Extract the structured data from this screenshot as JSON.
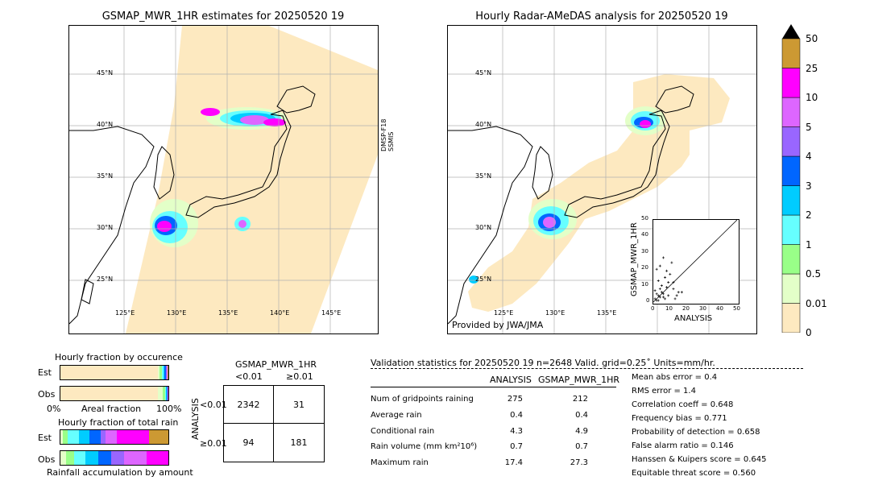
{
  "left_map": {
    "title": "GSMAP_MWR_1HR estimates for 20250520 19",
    "side_label": "DMSP-F18\nSSMIS",
    "lat_labels": [
      "45°N",
      "40°N",
      "35°N",
      "30°N",
      "25°N"
    ],
    "lon_labels": [
      "125°E",
      "130°E",
      "135°E",
      "140°E",
      "145°E"
    ]
  },
  "right_map": {
    "title": "Hourly Radar-AMeDAS analysis for 20250520 19",
    "lat_labels": [
      "45°N",
      "40°N",
      "35°N",
      "30°N",
      "25°N"
    ],
    "lon_labels": [
      "125°E",
      "130°E",
      "135°E"
    ],
    "credit": "Provided by JWA/JMA"
  },
  "colorbar": {
    "ticks": [
      "50",
      "25",
      "10",
      "5",
      "4",
      "3",
      "2",
      "1",
      "0.5",
      "0.01",
      "0"
    ],
    "colors": [
      "#fde9c0",
      "#e3ffc8",
      "#99ff88",
      "#66ffff",
      "#00ccff",
      "#0066ff",
      "#9966ff",
      "#dd66ff",
      "#ff00ff",
      "#cc9933"
    ]
  },
  "scatter": {
    "ylabel": "GSMAP_MWR_1HR",
    "xlabel": "ANALYSIS",
    "ticks": [
      "0",
      "10",
      "20",
      "30",
      "40",
      "50"
    ]
  },
  "chart_data": [
    {
      "type": "scatter",
      "xlabel": "ANALYSIS",
      "ylabel": "GSMAP_MWR_1HR",
      "xlim": [
        0,
        50
      ],
      "ylim": [
        0,
        50
      ],
      "points": [
        [
          1,
          2
        ],
        [
          2,
          1
        ],
        [
          3,
          4
        ],
        [
          4,
          3
        ],
        [
          5,
          6
        ],
        [
          6,
          5
        ],
        [
          7,
          2
        ],
        [
          8,
          9
        ],
        [
          9,
          12
        ],
        [
          10,
          17
        ],
        [
          11,
          24
        ],
        [
          12,
          8
        ],
        [
          13,
          2
        ],
        [
          15,
          6
        ],
        [
          2,
          20
        ],
        [
          4,
          22
        ],
        [
          6,
          27
        ],
        [
          8,
          19
        ],
        [
          3,
          13
        ],
        [
          5,
          10
        ],
        [
          7,
          15
        ],
        [
          9,
          4
        ],
        [
          1,
          7
        ],
        [
          2,
          5
        ],
        [
          12,
          12
        ],
        [
          14,
          4
        ],
        [
          17,
          6
        ],
        [
          6,
          3
        ],
        [
          3,
          1
        ],
        [
          4,
          8
        ]
      ]
    },
    {
      "type": "bar",
      "title": "Hourly fraction by occurence",
      "categories": [
        "Est",
        "Obs"
      ],
      "xlabel": "Areal fraction",
      "tick_labels": [
        "0%",
        "100%"
      ],
      "series_colors": [
        "#fde9c0",
        "#e3ffc8",
        "#99ff88",
        "#66ffff",
        "#00ccff",
        "#0066ff",
        "#9966ff",
        "#dd66ff",
        "#ff00ff",
        "#cc9933"
      ],
      "stacks": [
        [
          0.9,
          0.02,
          0.02,
          0.015,
          0.01,
          0.01,
          0.01,
          0.005,
          0.005,
          0.005
        ],
        [
          0.9,
          0.05,
          0.02,
          0.01,
          0.005,
          0.005,
          0.005,
          0.003,
          0.001,
          0.001
        ]
      ]
    },
    {
      "type": "bar",
      "title": "Hourly fraction of total rain",
      "categories": [
        "Est",
        "Obs"
      ],
      "xlabel": "Rainfall accumulation by amount",
      "series_colors": [
        "#fde9c0",
        "#e3ffc8",
        "#99ff88",
        "#66ffff",
        "#00ccff",
        "#0066ff",
        "#9966ff",
        "#dd66ff",
        "#ff00ff",
        "#cc9933"
      ],
      "stacks": [
        [
          0.0,
          0.02,
          0.05,
          0.1,
          0.1,
          0.1,
          0.05,
          0.1,
          0.3,
          0.18
        ],
        [
          0.0,
          0.05,
          0.08,
          0.1,
          0.12,
          0.12,
          0.12,
          0.21,
          0.2,
          0.0
        ]
      ]
    }
  ],
  "contingency": {
    "title": "GSMAP_MWR_1HR",
    "col_labels": [
      "<0.01",
      "≥0.01"
    ],
    "row_labels": [
      "<0.01",
      "≥0.01"
    ],
    "row_axis": "ANALYSIS",
    "cells": [
      [
        "2342",
        "31"
      ],
      [
        "94",
        "181"
      ]
    ]
  },
  "validation": {
    "header": "Validation statistics for 20250520 19  n=2648 Valid. grid=0.25˚ Units=mm/hr.",
    "col_analysis": "ANALYSIS",
    "col_gsmap": "GSMAP_MWR_1HR",
    "rows": [
      {
        "label": "Num of gridpoints raining",
        "analysis": "275",
        "gsmap": "212"
      },
      {
        "label": "Average rain",
        "analysis": "0.4",
        "gsmap": "0.4"
      },
      {
        "label": "Conditional rain",
        "analysis": "4.3",
        "gsmap": "4.9"
      },
      {
        "label": "Rain volume (mm km²10⁶)",
        "analysis": "0.7",
        "gsmap": "0.7"
      },
      {
        "label": "Maximum rain",
        "analysis": "17.4",
        "gsmap": "27.3"
      }
    ],
    "scores": [
      "Mean abs error =    0.4",
      "RMS error =    1.4",
      "Correlation coeff =  0.648",
      "Frequency bias =  0.771",
      "Probability of detection =  0.658",
      "False alarm ratio =  0.146",
      "Hanssen & Kuipers score =  0.645",
      "Equitable threat score =  0.560"
    ]
  }
}
